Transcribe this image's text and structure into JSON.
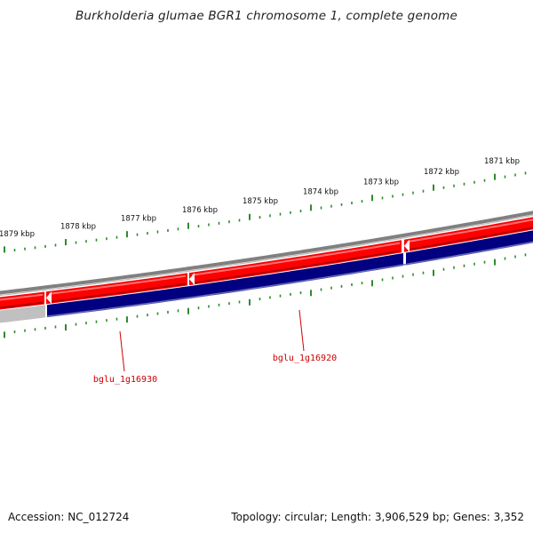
{
  "title": "Burkholderia glumae BGR1 chromosome 1, complete genome",
  "footer": {
    "accession": "Accession: NC_012724",
    "summary": "Topology: circular; Length: 3,906,529 bp; Genes: 3,352"
  },
  "ruler": {
    "labels": [
      "1879 kbp",
      "1878 kbp",
      "1877 kbp",
      "1876 kbp",
      "1875 kbp",
      "1874 kbp",
      "1873 kbp",
      "1872 kbp",
      "1871 kbp"
    ]
  },
  "genes": [
    {
      "name": "bglu_1g16930"
    },
    {
      "name": "bglu_1g16920"
    }
  ],
  "colors": {
    "forward_gene": "#ff0000",
    "reverse_gene": "#000080",
    "backbone": "#808080",
    "ruler": "#2e8b2e",
    "gene_label": "#cc0000",
    "inactive_gene": "#c0c0c0"
  }
}
